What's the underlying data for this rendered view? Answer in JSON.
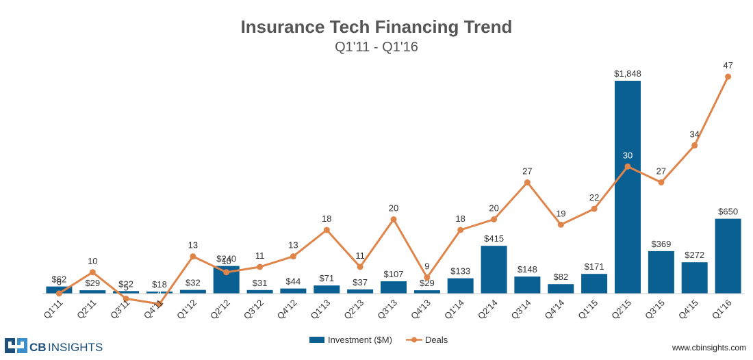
{
  "colors": {
    "bar": "#0a5f93",
    "line": "#e0854a",
    "axis": "#c8c8c8",
    "title": "#555555",
    "logo_blue": "#1c4f7a",
    "logo_light": "#3a8fcb"
  },
  "logo": {
    "brand": "CB",
    "word": "INSIGHTS"
  },
  "footer": {
    "url": "www.cbinsights.com"
  },
  "chart_data": {
    "type": "bar",
    "title": "Insurance Tech Financing Trend",
    "subtitle": "Q1'11 - Q1'16",
    "categories": [
      "Q1'11",
      "Q2'11",
      "Q3'11",
      "Q4'11",
      "Q1'12",
      "Q2'12",
      "Q3'12",
      "Q4'12",
      "Q1'13",
      "Q2'13",
      "Q3'13",
      "Q4'13",
      "Q1'14",
      "Q2'14",
      "Q3'14",
      "Q4'14",
      "Q1'15",
      "Q2'15",
      "Q3'15",
      "Q4'15",
      "Q1'16"
    ],
    "series": [
      {
        "name": "Investment ($M)",
        "type": "bar",
        "values": [
          62,
          29,
          22,
          18,
          32,
          240,
          31,
          44,
          71,
          37,
          107,
          29,
          133,
          415,
          148,
          82,
          171,
          1848,
          369,
          272,
          650
        ],
        "labels": [
          "$62",
          "$29",
          "$22",
          "$18",
          "$32",
          "$240",
          "$31",
          "$44",
          "$71",
          "$37",
          "$107",
          "$29",
          "$133",
          "$415",
          "$148",
          "$82",
          "$171",
          "$1,848",
          "$369",
          "$272",
          "$650"
        ]
      },
      {
        "name": "Deals",
        "type": "line",
        "values": [
          6,
          10,
          5,
          4,
          13,
          10,
          11,
          13,
          18,
          11,
          20,
          9,
          18,
          20,
          27,
          19,
          22,
          30,
          27,
          34,
          47
        ]
      }
    ],
    "legend_position": "bottom",
    "grid": false
  }
}
